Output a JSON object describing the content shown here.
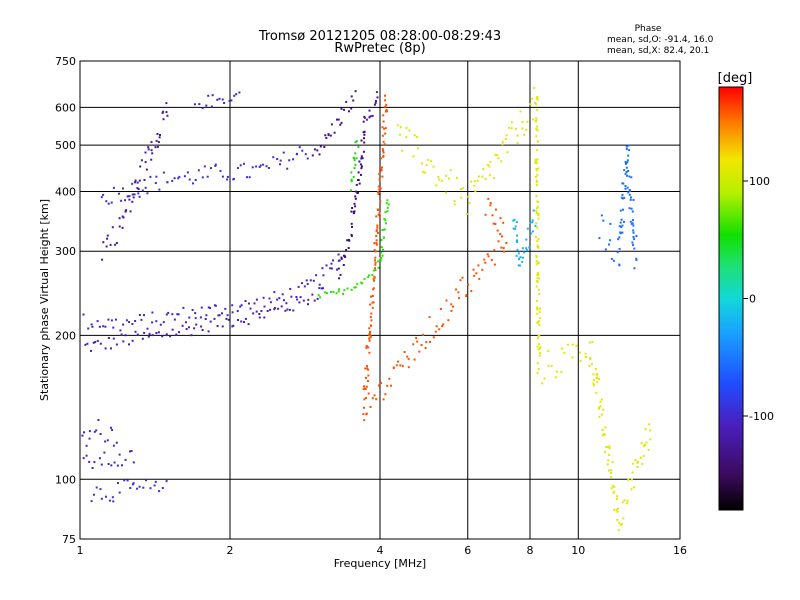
{
  "chart_data": {
    "type": "scatter",
    "title": "Tromsø 20121205 08:28:00-08:29:43",
    "subtitle": "RwPretec (8p)",
    "xlabel": "Frequency [MHz]",
    "ylabel": "Stationary phase Virtual Height [km]",
    "x_scale": "log",
    "y_scale": "log",
    "xlim": [
      1,
      16
    ],
    "ylim": [
      75,
      750
    ],
    "x_ticks": [
      1,
      2,
      4,
      6,
      8,
      10,
      16
    ],
    "y_ticks": [
      75,
      100,
      200,
      300,
      400,
      500,
      600,
      750
    ],
    "grid": true,
    "stats": {
      "title": "Phase",
      "line_o": "mean, sd,O: -91.4, 16.0",
      "line_x": "mean, sd,X:  82.4, 20.1"
    },
    "colorbar": {
      "label": "[deg]",
      "range": [
        -180,
        180
      ],
      "ticks": [
        {
          "value": 100,
          "label": "100"
        },
        {
          "value": 0,
          "label": "0"
        },
        {
          "value": -100,
          "label": "-100"
        }
      ]
    },
    "traces": [
      {
        "name": "",
        "phase": -110,
        "jitter": 0.035,
        "points": [
          [
            1.0,
            190
          ],
          [
            1.1,
            192
          ],
          [
            1.2,
            196
          ],
          [
            1.4,
            200
          ],
          [
            1.6,
            206
          ],
          [
            1.8,
            212
          ],
          [
            2.0,
            216
          ],
          [
            2.3,
            222
          ],
          [
            2.6,
            230
          ],
          [
            2.8,
            238
          ],
          [
            3.0,
            246
          ],
          [
            3.1,
            250
          ]
        ]
      },
      {
        "name": "",
        "phase": -100,
        "jitter": 0.04,
        "points": [
          [
            1.0,
            215
          ],
          [
            1.2,
            212
          ],
          [
            1.4,
            216
          ],
          [
            1.6,
            222
          ],
          [
            1.8,
            225
          ],
          [
            2.0,
            230
          ],
          [
            2.2,
            232
          ],
          [
            2.5,
            240
          ],
          [
            2.8,
            250
          ],
          [
            3.0,
            262
          ],
          [
            3.2,
            280
          ],
          [
            3.35,
            300
          ]
        ]
      },
      {
        "name": "",
        "phase": -95,
        "jitter": 0.045,
        "points": [
          [
            1.1,
            388
          ],
          [
            1.2,
            400
          ],
          [
            1.35,
            412
          ],
          [
            1.5,
            428
          ],
          [
            1.7,
            432
          ],
          [
            1.9,
            440
          ],
          [
            2.1,
            440
          ],
          [
            2.3,
            445
          ],
          [
            2.5,
            460
          ],
          [
            2.7,
            478
          ],
          [
            2.9,
            492
          ]
        ]
      },
      {
        "name": "",
        "phase": -130,
        "jitter": 0.04,
        "points": [
          [
            2.9,
            485
          ],
          [
            3.1,
            510
          ],
          [
            3.2,
            540
          ],
          [
            3.3,
            570
          ],
          [
            3.4,
            600
          ],
          [
            3.5,
            615
          ],
          [
            3.55,
            640
          ]
        ]
      },
      {
        "name": "",
        "phase": -140,
        "jitter": 0.05,
        "points": [
          [
            3.3,
            270
          ],
          [
            3.4,
            300
          ],
          [
            3.5,
            340
          ],
          [
            3.55,
            380
          ],
          [
            3.6,
            420
          ],
          [
            3.65,
            460
          ],
          [
            3.7,
            520
          ],
          [
            3.72,
            560
          ]
        ]
      },
      {
        "name": "",
        "phase": -120,
        "jitter": 0.03,
        "points": [
          [
            3.7,
            560
          ],
          [
            3.8,
            580
          ],
          [
            3.9,
            600
          ],
          [
            3.95,
            640
          ]
        ]
      },
      {
        "name": "",
        "phase": 60,
        "jitter": 0.015,
        "points": [
          [
            3.0,
            243
          ],
          [
            3.2,
            245
          ],
          [
            3.4,
            250
          ],
          [
            3.6,
            258
          ],
          [
            3.8,
            268
          ],
          [
            3.95,
            280
          ],
          [
            4.0,
            295
          ],
          [
            4.05,
            330
          ],
          [
            4.1,
            360
          ],
          [
            4.15,
            390
          ]
        ]
      },
      {
        "name": "",
        "phase": 55,
        "jitter": 0.04,
        "points": [
          [
            3.5,
            420
          ],
          [
            3.55,
            480
          ],
          [
            3.6,
            520
          ]
        ]
      },
      {
        "name": "",
        "phase": -105,
        "jitter": 0.04,
        "points": [
          [
            1.0,
            108
          ],
          [
            1.1,
            110
          ],
          [
            1.2,
            110
          ],
          [
            1.3,
            112
          ]
        ]
      },
      {
        "name": "",
        "phase": -100,
        "jitter": 0.06,
        "points": [
          [
            1.0,
            120
          ],
          [
            1.1,
            128
          ],
          [
            1.2,
            124
          ]
        ]
      },
      {
        "name": "",
        "phase": -95,
        "jitter": 0.05,
        "points": [
          [
            1.05,
            94
          ],
          [
            1.2,
            95
          ],
          [
            1.3,
            96
          ],
          [
            1.5,
            95
          ]
        ]
      },
      {
        "name": "",
        "phase": -105,
        "jitter": 0.03,
        "points": [
          [
            1.7,
            615
          ],
          [
            1.9,
            625
          ],
          [
            2.0,
            635
          ],
          [
            2.1,
            640
          ]
        ]
      },
      {
        "name": "",
        "phase": -120,
        "jitter": 0.06,
        "points": [
          [
            1.1,
            305
          ],
          [
            1.2,
            340
          ],
          [
            1.5,
            610
          ]
        ]
      },
      {
        "name": "",
        "phase": -20,
        "jitter": 0.05,
        "points": [
          [
            7.4,
            350
          ],
          [
            7.6,
            280
          ],
          [
            8.2,
            360
          ]
        ]
      },
      {
        "name": "",
        "phase": -55,
        "jitter": 0.08,
        "points": [
          [
            11,
            340
          ],
          [
            11.5,
            320
          ],
          [
            12,
            300
          ],
          [
            12.5,
            480
          ],
          [
            13,
            290
          ]
        ]
      },
      {
        "name": "",
        "phase": 110,
        "jitter": 0.08,
        "points": [
          [
            4.3,
            530
          ],
          [
            6.0,
            380
          ],
          [
            8.2,
            620
          ],
          [
            8.3,
            170
          ],
          [
            10.5,
            190
          ],
          [
            12,
            84
          ],
          [
            14,
            130
          ]
        ]
      },
      {
        "name": "",
        "phase": 160,
        "jitter": 0.06,
        "points": [
          [
            6.5,
            375
          ],
          [
            6.6,
            370
          ],
          [
            7.1,
            320
          ],
          [
            3.7,
            140
          ],
          [
            4.1,
            640
          ]
        ]
      }
    ]
  }
}
